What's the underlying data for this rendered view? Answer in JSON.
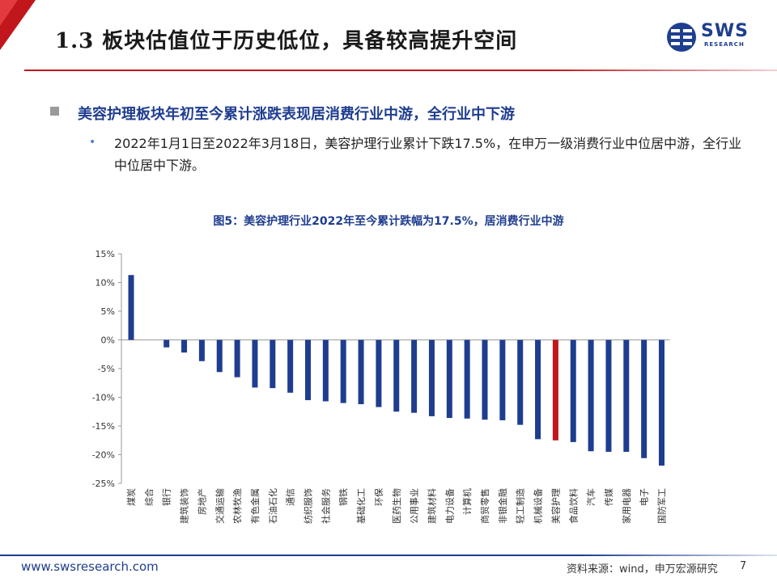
{
  "header": {
    "title": "1.3 板块估值位于历史低位，具备较高提升空间",
    "logo_text": "SWS",
    "logo_subtext": "RESEARCH"
  },
  "bullets": {
    "main": "美容护理板块年初至今累计涨跌表现居消费行业中游，全行业中下游",
    "sub": "2022年1月1日至2022年3月18日，美容护理行业累计下跌17.5%，在申万一级消费行业中位居中游，全行业中位居中下游。"
  },
  "chart_data": {
    "type": "bar",
    "title": "图5：美容护理行业2022年至今累计跌幅为17.5%，居消费行业中游",
    "categories": [
      "煤炭",
      "综合",
      "银行",
      "建筑装饰",
      "房地产",
      "交通运输",
      "农林牧渔",
      "有色金属",
      "石油石化",
      "通信",
      "纺织服饰",
      "社会服务",
      "钢铁",
      "基础化工",
      "环保",
      "医药生物",
      "公用事业",
      "建筑材料",
      "电力设备",
      "计算机",
      "商贸零售",
      "非银金融",
      "轻工制造",
      "机械设备",
      "美容护理",
      "食品饮料",
      "汽车",
      "传媒",
      "家用电器",
      "电子",
      "国防军工"
    ],
    "values": [
      11.3,
      0.0,
      -1.3,
      -2.2,
      -3.7,
      -5.6,
      -6.5,
      -8.3,
      -8.4,
      -9.2,
      -10.5,
      -10.7,
      -11.0,
      -11.2,
      -11.7,
      -12.5,
      -12.7,
      -13.3,
      -13.6,
      -13.7,
      -13.9,
      -14.0,
      -14.8,
      -17.3,
      -17.5,
      -17.8,
      -19.4,
      -19.5,
      -19.5,
      -20.6,
      -21.9
    ],
    "highlight_category": "美容护理",
    "ylim": [
      -25,
      15
    ],
    "yticks": [
      "15%",
      "10%",
      "5%",
      "0%",
      "-5%",
      "-10%",
      "-15%",
      "-20%",
      "-25%"
    ],
    "colors": {
      "bar": "#1f3d8f",
      "highlight": "#c0161c"
    }
  },
  "footer": {
    "url": "www.swsresearch.com",
    "source": "资料来源：wind，申万宏源研究",
    "page": "7"
  }
}
